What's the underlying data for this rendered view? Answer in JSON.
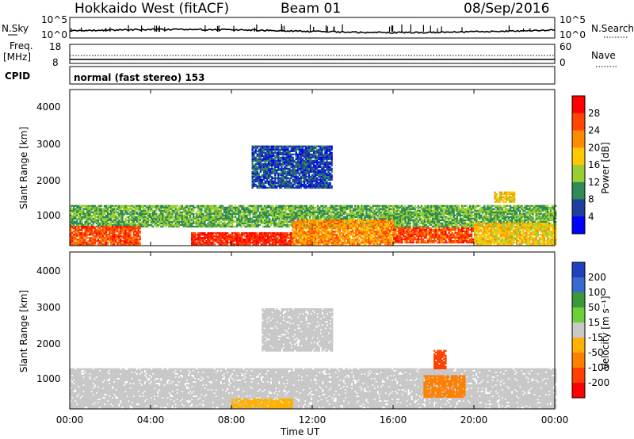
{
  "header": {
    "site": "Hokkaido West (fitACF)",
    "beam": "Beam 01",
    "date": "08/Sep/2016"
  },
  "nsky_panel": {
    "left_label": "N.Sky",
    "left_ticks": [
      "10^5",
      "10^0"
    ],
    "right_ticks": [
      "10^5",
      "10^0"
    ],
    "right_label": "N.Search",
    "right_label_style": "dotted"
  },
  "freq_panel": {
    "left_label_line1": "Freq.",
    "left_label_line2": "[MHz]",
    "left_ticks": [
      "18",
      "8"
    ],
    "right_ticks": [
      "60",
      "0"
    ],
    "right_label": "Nave",
    "right_label_style": "dotted"
  },
  "cpid_panel": {
    "label": "CPID",
    "value": "normal (fast stereo) 153"
  },
  "power_panel": {
    "ylabel": "Slant Range [km]",
    "yticks": [
      "4000",
      "3000",
      "2000",
      "1000"
    ],
    "colorbar_label": "Power [dB]",
    "colorbar_ticks": [
      "28",
      "24",
      "20",
      "16",
      "12",
      "8",
      "4"
    ],
    "colorbar_colors": [
      "#ff0000",
      "#ff4500",
      "#ff8c00",
      "#ffc800",
      "#9acd32",
      "#2e8b57",
      "#1f3f9f",
      "#0000ff"
    ]
  },
  "velocity_panel": {
    "ylabel": "Slant Range [km]",
    "yticks": [
      "4000",
      "3000",
      "2000",
      "1000"
    ],
    "colorbar_label": "Velocity [m s⁻¹]",
    "colorbar_ticks": [
      "200",
      "100",
      "50",
      "15",
      "-15",
      "-50",
      "-100",
      "-200"
    ],
    "colorbar_colors": [
      "#2040c0",
      "#3a6ad0",
      "#3a9a3a",
      "#6bcf3a",
      "#c8c8c8",
      "#ffb000",
      "#ff8000",
      "#ff4000",
      "#ff0000"
    ]
  },
  "xaxis": {
    "ticks": [
      "00:00",
      "04:00",
      "08:00",
      "12:00",
      "16:00",
      "20:00",
      "00:00"
    ],
    "label": "Time UT"
  },
  "chart_data": {
    "type": "heatmap",
    "title": "Hokkaido West (fitACF)",
    "x_range_hours": [
      0,
      24
    ],
    "y_range_km": [
      180,
      4600
    ],
    "power_bands": [
      {
        "start_h": 0.0,
        "end_h": 24.0,
        "range_lo_km": 700,
        "range_hi_km": 1300,
        "power_db": 12
      },
      {
        "start_h": 0.0,
        "end_h": 3.5,
        "range_lo_km": 200,
        "range_hi_km": 700,
        "power_db": 26
      },
      {
        "start_h": 6.0,
        "end_h": 11.0,
        "range_lo_km": 200,
        "range_hi_km": 550,
        "power_db": 28
      },
      {
        "start_h": 11.0,
        "end_h": 16.0,
        "range_lo_km": 200,
        "range_hi_km": 900,
        "power_db": 22
      },
      {
        "start_h": 16.0,
        "end_h": 20.0,
        "range_lo_km": 250,
        "range_hi_km": 700,
        "power_db": 26
      },
      {
        "start_h": 20.0,
        "end_h": 24.0,
        "range_lo_km": 200,
        "range_hi_km": 800,
        "power_db": 18
      },
      {
        "start_h": 9.0,
        "end_h": 13.0,
        "range_lo_km": 1800,
        "range_hi_km": 3000,
        "power_db": 6
      },
      {
        "start_h": 21.0,
        "end_h": 22.0,
        "range_lo_km": 1400,
        "range_hi_km": 1700,
        "power_db": 18
      }
    ],
    "velocity_bands": [
      {
        "start_h": 0.0,
        "end_h": 24.0,
        "range_lo_km": 200,
        "range_hi_km": 1300,
        "velocity_ms": 0
      },
      {
        "start_h": 17.5,
        "end_h": 19.5,
        "range_lo_km": 500,
        "range_hi_km": 1100,
        "velocity_ms": -60
      },
      {
        "start_h": 18.0,
        "end_h": 18.6,
        "range_lo_km": 1300,
        "range_hi_km": 1800,
        "velocity_ms": -120
      },
      {
        "start_h": 8.0,
        "end_h": 11.0,
        "range_lo_km": 200,
        "range_hi_km": 450,
        "velocity_ms": -30
      },
      {
        "start_h": 9.5,
        "end_h": 13.0,
        "range_lo_km": 1800,
        "range_hi_km": 3000,
        "velocity_ms": 0
      }
    ],
    "series": []
  }
}
